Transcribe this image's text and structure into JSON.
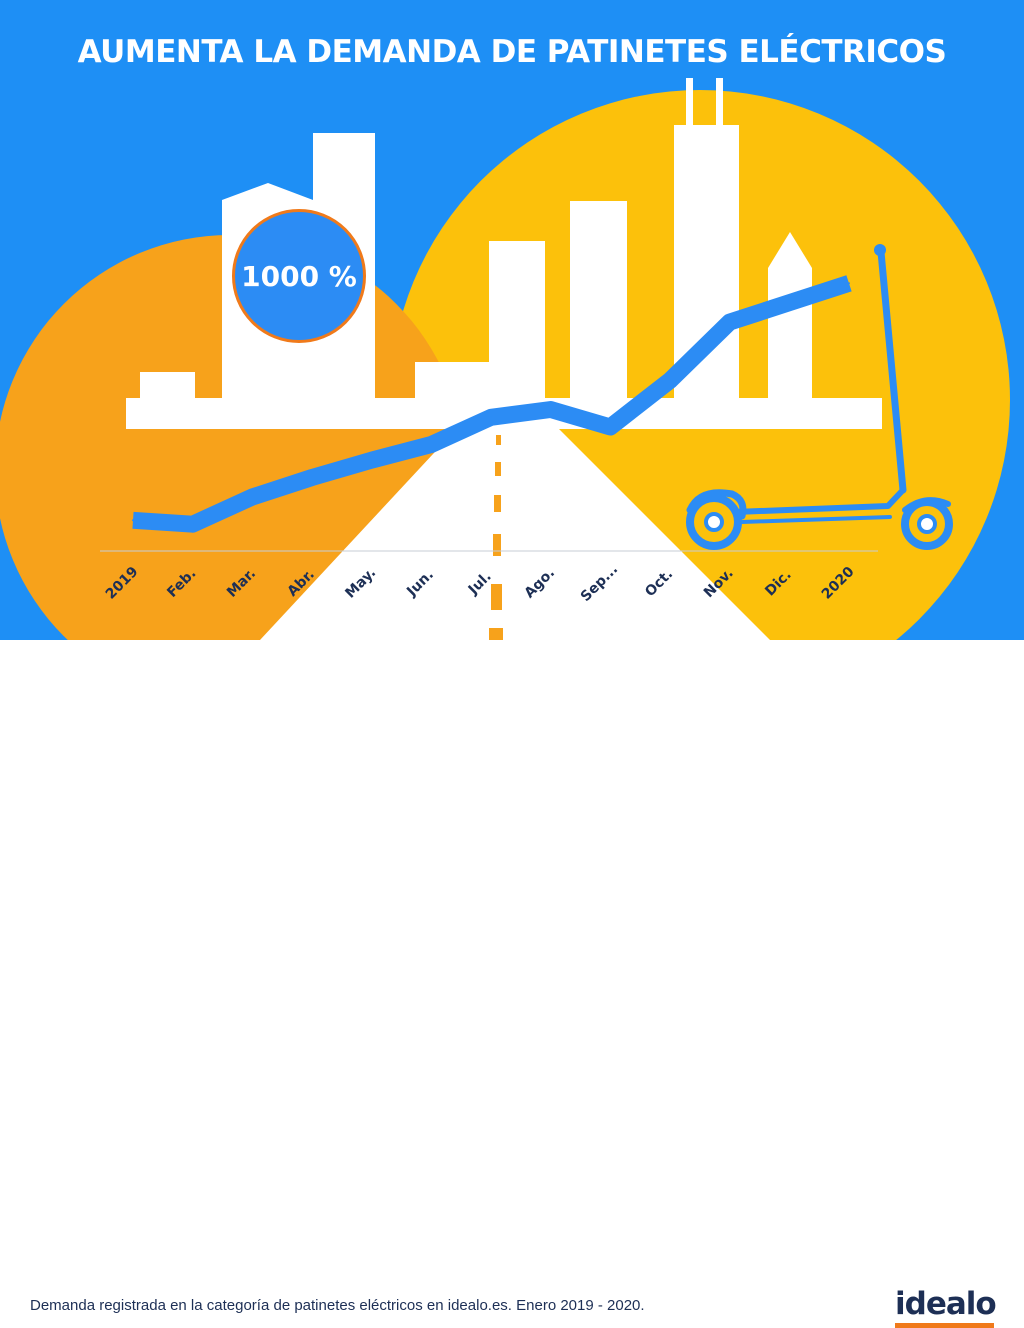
{
  "title": "AUMENTA LA DEMANDA DE PATINETES ELÉCTRICOS",
  "badge": "1000 %",
  "caption": "Demanda registrada en la categoría de patinetes eléctricos en idealo.es. Enero 2019 - 2020.",
  "logo": "idealo",
  "colors": {
    "sky": "#1e8ff5",
    "sun_left": "#f7a21b",
    "sun_right": "#fcc10b",
    "line": "#2c8cf4",
    "road_dash": "#f7a21b",
    "text_dark": "#1d2f55",
    "accent": "#f07a1a"
  },
  "icons": [
    "skyline-illustration",
    "road-illustration",
    "electric-scooter-icon"
  ],
  "chart_data": {
    "type": "line",
    "categories": [
      "2019",
      "Feb.",
      "Mar.",
      "Abr.",
      "May.",
      "Jun.",
      "Jul.",
      "Ago.",
      "Sep...",
      "Oct.",
      "Nov.",
      "Dic.",
      "2020"
    ],
    "values": [
      5,
      3,
      17,
      27,
      36,
      44,
      58,
      62,
      53,
      77,
      107,
      117,
      127
    ],
    "ylim": [
      0,
      175
    ],
    "grid": false,
    "legend": "none",
    "title": "",
    "xlabel": "",
    "ylabel": ""
  }
}
